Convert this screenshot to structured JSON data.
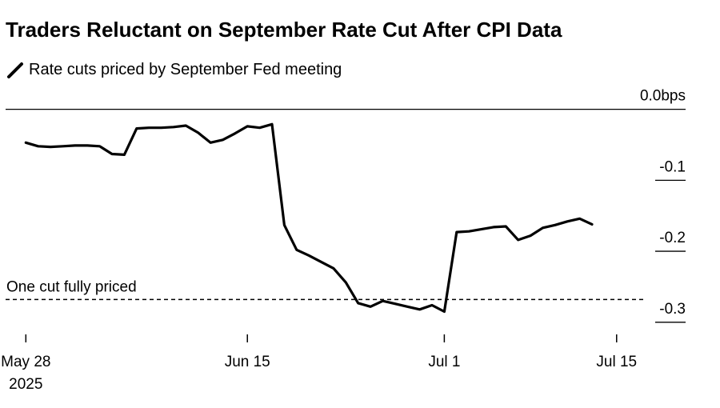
{
  "chart_data": {
    "type": "line",
    "title": "Traders Reluctant on September Rate Cut After CPI Data",
    "legend": [
      {
        "label": "Rate cuts priced by September Fed meeting",
        "color": "#000000"
      }
    ],
    "x_tick_labels": [
      {
        "day": 0,
        "lines": [
          "May 28",
          "2025"
        ]
      },
      {
        "day": 18,
        "lines": [
          "Jun 15"
        ]
      },
      {
        "day": 34,
        "lines": [
          "Jul 1"
        ]
      },
      {
        "day": 48,
        "lines": [
          "Jul 15"
        ]
      }
    ],
    "y_tick_labels": [
      {
        "value": 0.0,
        "label": "0.0bps"
      },
      {
        "value": -0.1,
        "label": "-0.1"
      },
      {
        "value": -0.2,
        "label": "-0.2"
      },
      {
        "value": -0.3,
        "label": "-0.3"
      }
    ],
    "xlim": [
      -2.1,
      56.4
    ],
    "ylim": [
      -0.325,
      0.03
    ],
    "reference_line": {
      "value": -0.268,
      "label": "One cut fully priced"
    },
    "series": [
      {
        "name": "Rate cuts priced by September Fed meeting",
        "points": [
          [
            0,
            -0.047
          ],
          [
            1,
            -0.052
          ],
          [
            2,
            -0.053
          ],
          [
            3,
            -0.052
          ],
          [
            4,
            -0.051
          ],
          [
            5,
            -0.051
          ],
          [
            6,
            -0.052
          ],
          [
            7,
            -0.063
          ],
          [
            8,
            -0.064
          ],
          [
            9,
            -0.027
          ],
          [
            10,
            -0.026
          ],
          [
            11,
            -0.026
          ],
          [
            12,
            -0.025
          ],
          [
            13,
            -0.023
          ],
          [
            14,
            -0.033
          ],
          [
            15,
            -0.047
          ],
          [
            16,
            -0.043
          ],
          [
            17,
            -0.034
          ],
          [
            18,
            -0.024
          ],
          [
            19,
            -0.026
          ],
          [
            20,
            -0.021
          ],
          [
            21,
            -0.163
          ],
          [
            22,
            -0.198
          ],
          [
            23,
            -0.206
          ],
          [
            24,
            -0.215
          ],
          [
            25,
            -0.224
          ],
          [
            26,
            -0.244
          ],
          [
            27,
            -0.273
          ],
          [
            28,
            -0.278
          ],
          [
            29,
            -0.27
          ],
          [
            30,
            -0.274
          ],
          [
            31,
            -0.278
          ],
          [
            32,
            -0.282
          ],
          [
            33,
            -0.276
          ],
          [
            34,
            -0.285
          ],
          [
            35,
            -0.173
          ],
          [
            36,
            -0.172
          ],
          [
            37,
            -0.169
          ],
          [
            38,
            -0.166
          ],
          [
            39,
            -0.165
          ],
          [
            40,
            -0.184
          ],
          [
            41,
            -0.178
          ],
          [
            42,
            -0.167
          ],
          [
            43,
            -0.163
          ],
          [
            44,
            -0.158
          ],
          [
            45,
            -0.154
          ],
          [
            46,
            -0.162
          ]
        ]
      }
    ]
  }
}
